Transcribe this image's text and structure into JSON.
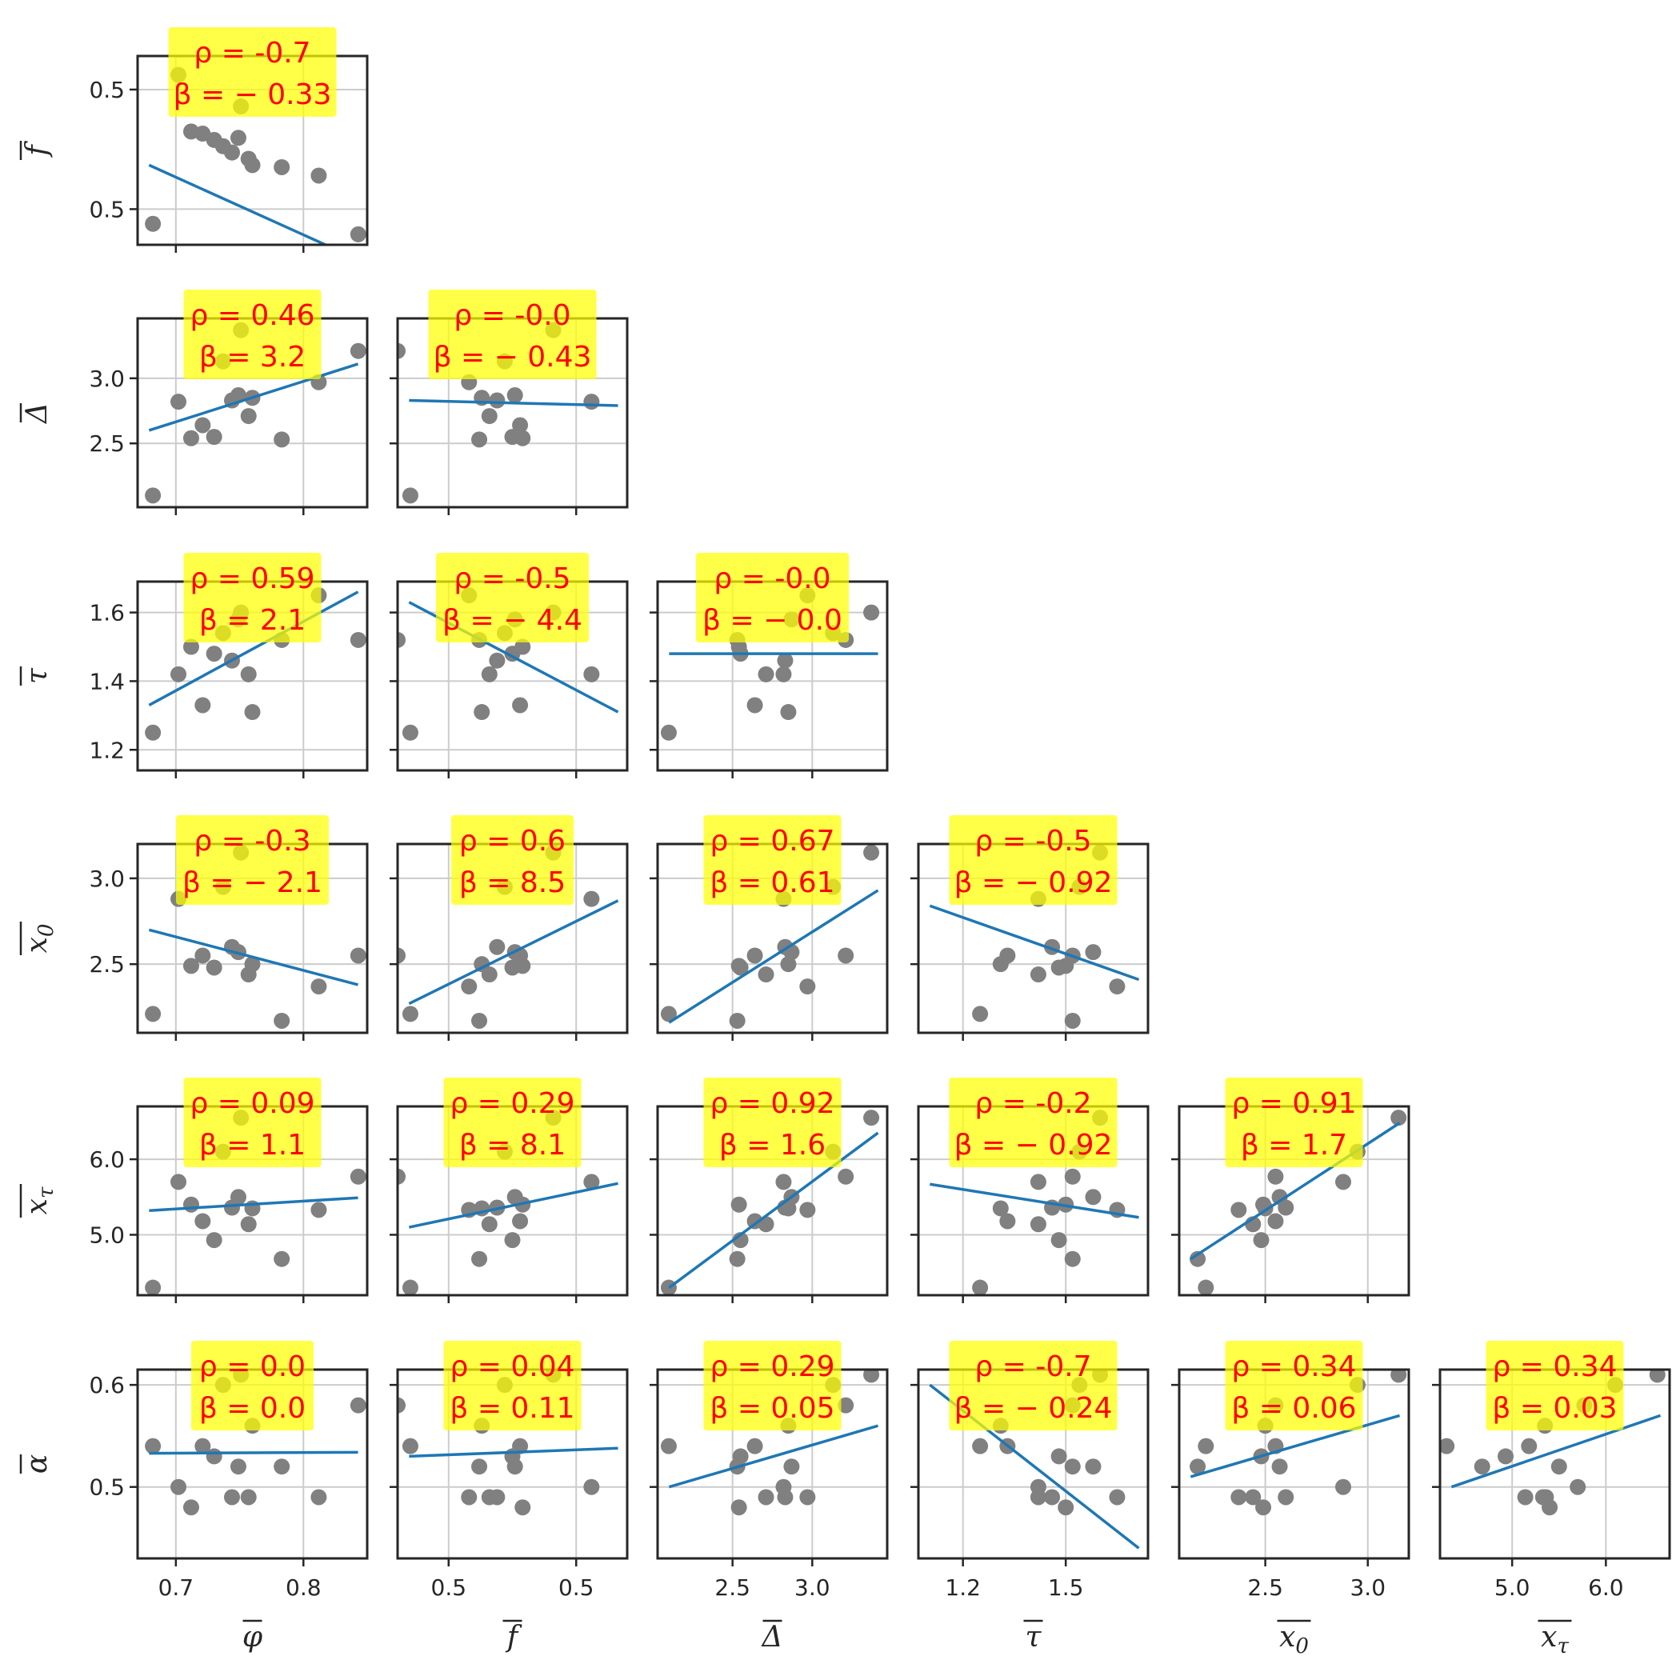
{
  "variables": [
    {
      "key": "phi",
      "label": "φ̄"
    },
    {
      "key": "f",
      "label": "f̄"
    },
    {
      "key": "Delta",
      "label": "Δ̄"
    },
    {
      "key": "tau",
      "label": "τ̄"
    },
    {
      "key": "x0",
      "label": "x₀ (overline)"
    },
    {
      "key": "xtau",
      "label": "x_τ (overline)"
    },
    {
      "key": "alpha",
      "label": "ᾱ"
    }
  ],
  "chart_data": {
    "type": "scatter",
    "layout": "lower-triangular pair plot (6x6)",
    "grid": true,
    "point_color": "#808080",
    "fit_line_color": "#1f77b4",
    "annotation_box_color": "#ffff00",
    "annotation_text_color": "#ff0000",
    "x_axes": [
      {
        "var": "phi",
        "label": "φ",
        "range": [
          0.67,
          0.85
        ],
        "ticks": [
          0.7,
          0.8
        ],
        "tick_labels": [
          "0.7",
          "0.8"
        ]
      },
      {
        "var": "f",
        "label": "f",
        "range": [
          0.46,
          0.55
        ],
        "ticks": [
          0.48,
          0.53
        ],
        "tick_labels": [
          "0.5",
          "0.5"
        ]
      },
      {
        "var": "Delta",
        "label": "Δ",
        "range": [
          2.03,
          3.47
        ],
        "ticks": [
          2.5,
          3.0
        ],
        "tick_labels": [
          "2.5",
          "3.0"
        ]
      },
      {
        "var": "tau",
        "label": "τ",
        "range": [
          1.07,
          1.74
        ],
        "ticks": [
          1.2,
          1.5
        ],
        "tick_labels": [
          "1.2",
          "1.5"
        ]
      },
      {
        "var": "x0",
        "label": "x₀",
        "range": [
          2.08,
          3.2
        ],
        "ticks": [
          2.5,
          3.0
        ],
        "tick_labels": [
          "2.5",
          "3.0"
        ]
      },
      {
        "var": "xtau",
        "label": "x_τ",
        "range": [
          4.23,
          6.68
        ],
        "ticks": [
          5.0,
          6.0
        ],
        "tick_labels": [
          "5.0",
          "6.0"
        ]
      }
    ],
    "y_axes": [
      {
        "var": "f",
        "label": "f",
        "range": [
          0.455,
          0.545
        ],
        "ticks": [
          0.472,
          0.529
        ],
        "tick_labels": [
          "0.5",
          "0.5"
        ]
      },
      {
        "var": "Delta",
        "label": "Δ",
        "range": [
          2.01,
          3.46
        ],
        "ticks": [
          2.5,
          3.0
        ],
        "tick_labels": [
          "2.5",
          "3.0"
        ]
      },
      {
        "var": "tau",
        "label": "τ",
        "range": [
          1.14,
          1.69
        ],
        "ticks": [
          1.2,
          1.4,
          1.6
        ],
        "tick_labels": [
          "1.2",
          "1.4",
          "1.6"
        ]
      },
      {
        "var": "x0",
        "label": "x₀",
        "range": [
          2.1,
          3.2
        ],
        "ticks": [
          2.5,
          3.0
        ],
        "tick_labels": [
          "2.5",
          "3.0"
        ]
      },
      {
        "var": "xtau",
        "label": "x_τ",
        "range": [
          4.2,
          6.7
        ],
        "ticks": [
          5.0,
          6.0
        ],
        "tick_labels": [
          "5.0",
          "6.0"
        ]
      },
      {
        "var": "alpha",
        "label": "α",
        "range": [
          0.43,
          0.615
        ],
        "ticks": [
          0.5,
          0.6
        ],
        "tick_labels": [
          "0.5",
          "0.6"
        ]
      }
    ],
    "observations": [
      {
        "phi": 0.682,
        "f": 0.465,
        "Delta": 2.1,
        "tau": 1.25,
        "x0": 2.21,
        "xtau": 4.3,
        "alpha": 0.54
      },
      {
        "phi": 0.702,
        "f": 0.536,
        "Delta": 2.82,
        "tau": 1.42,
        "x0": 2.88,
        "xtau": 5.7,
        "alpha": 0.5
      },
      {
        "phi": 0.712,
        "f": 0.509,
        "Delta": 2.54,
        "tau": 1.5,
        "x0": 2.49,
        "xtau": 5.4,
        "alpha": 0.48
      },
      {
        "phi": 0.721,
        "f": 0.508,
        "Delta": 2.64,
        "tau": 1.33,
        "x0": 2.55,
        "xtau": 5.18,
        "alpha": 0.54
      },
      {
        "phi": 0.73,
        "f": 0.505,
        "Delta": 2.55,
        "tau": 1.48,
        "x0": 2.48,
        "xtau": 4.93,
        "alpha": 0.53
      },
      {
        "phi": 0.737,
        "f": 0.502,
        "Delta": 3.13,
        "tau": 1.54,
        "x0": 2.95,
        "xtau": 6.1,
        "alpha": 0.6
      },
      {
        "phi": 0.744,
        "f": 0.499,
        "Delta": 2.83,
        "tau": 1.46,
        "x0": 2.6,
        "xtau": 5.36,
        "alpha": 0.49
      },
      {
        "phi": 0.749,
        "f": 0.506,
        "Delta": 2.87,
        "tau": 1.58,
        "x0": 2.57,
        "xtau": 5.5,
        "alpha": 0.52
      },
      {
        "phi": 0.751,
        "f": 0.521,
        "Delta": 3.37,
        "tau": 1.6,
        "x0": 3.15,
        "xtau": 6.55,
        "alpha": 0.61
      },
      {
        "phi": 0.757,
        "f": 0.496,
        "Delta": 2.71,
        "tau": 1.42,
        "x0": 2.44,
        "xtau": 5.14,
        "alpha": 0.49
      },
      {
        "phi": 0.76,
        "f": 0.493,
        "Delta": 2.85,
        "tau": 1.31,
        "x0": 2.5,
        "xtau": 5.35,
        "alpha": 0.56
      },
      {
        "phi": 0.783,
        "f": 0.492,
        "Delta": 2.53,
        "tau": 1.52,
        "x0": 2.17,
        "xtau": 4.68,
        "alpha": 0.52
      },
      {
        "phi": 0.812,
        "f": 0.488,
        "Delta": 2.97,
        "tau": 1.65,
        "x0": 2.37,
        "xtau": 5.33,
        "alpha": 0.49
      },
      {
        "phi": 0.843,
        "f": 0.46,
        "Delta": 3.21,
        "tau": 1.52,
        "x0": 2.55,
        "xtau": 5.77,
        "alpha": 0.58
      }
    ],
    "panels": [
      {
        "row": 0,
        "col": 0,
        "rho": "ρ = -0.7",
        "beta": "β = − 0.33",
        "fit": [
          0.493,
          0.448
        ]
      },
      {
        "row": 1,
        "col": 0,
        "rho": "ρ = 0.46",
        "beta": "β = 3.2",
        "fit": [
          2.6,
          3.11
        ]
      },
      {
        "row": 1,
        "col": 1,
        "rho": "ρ = -0.0",
        "beta": "β = − 0.43",
        "fit": [
          2.83,
          2.79
        ]
      },
      {
        "row": 2,
        "col": 0,
        "rho": "ρ = 0.59",
        "beta": "β = 2.1",
        "fit": [
          1.33,
          1.66
        ]
      },
      {
        "row": 2,
        "col": 1,
        "rho": "ρ = -0.5",
        "beta": "β = − 4.4",
        "fit": [
          1.63,
          1.31
        ]
      },
      {
        "row": 2,
        "col": 2,
        "rho": "ρ = -0.0",
        "beta": "β = − 0.0",
        "fit": [
          1.48,
          1.48
        ]
      },
      {
        "row": 3,
        "col": 0,
        "rho": "ρ = -0.3",
        "beta": "β = − 2.1",
        "fit": [
          2.7,
          2.38
        ]
      },
      {
        "row": 3,
        "col": 1,
        "rho": "ρ = 0.6",
        "beta": "β = 8.5",
        "fit": [
          2.27,
          2.87
        ]
      },
      {
        "row": 3,
        "col": 2,
        "rho": "ρ = 0.67",
        "beta": "β = 0.61",
        "fit": [
          2.16,
          2.93
        ]
      },
      {
        "row": 3,
        "col": 3,
        "rho": "ρ = -0.5",
        "beta": "β = − 0.92",
        "fit": [
          2.84,
          2.41
        ]
      },
      {
        "row": 4,
        "col": 0,
        "rho": "ρ = 0.09",
        "beta": "β = 1.1",
        "fit": [
          5.32,
          5.49
        ]
      },
      {
        "row": 4,
        "col": 1,
        "rho": "ρ = 0.29",
        "beta": "β = 8.1",
        "fit": [
          5.1,
          5.68
        ]
      },
      {
        "row": 4,
        "col": 2,
        "rho": "ρ = 0.92",
        "beta": "β = 1.6",
        "fit": [
          4.3,
          6.35
        ]
      },
      {
        "row": 4,
        "col": 3,
        "rho": "ρ = -0.2",
        "beta": "β = − 0.92",
        "fit": [
          5.67,
          5.23
        ]
      },
      {
        "row": 4,
        "col": 4,
        "rho": "ρ = 0.91",
        "beta": "β = 1.7",
        "fit": [
          4.68,
          6.48
        ]
      },
      {
        "row": 5,
        "col": 0,
        "rho": "ρ = 0.0",
        "beta": "β = 0.0",
        "fit": [
          0.533,
          0.534
        ]
      },
      {
        "row": 5,
        "col": 1,
        "rho": "ρ = 0.04",
        "beta": "β = 0.11",
        "fit": [
          0.53,
          0.538
        ]
      },
      {
        "row": 5,
        "col": 2,
        "rho": "ρ = 0.29",
        "beta": "β = 0.05",
        "fit": [
          0.5,
          0.56
        ]
      },
      {
        "row": 5,
        "col": 3,
        "rho": "ρ = -0.7",
        "beta": "β = − 0.24",
        "fit": [
          0.6,
          0.44
        ]
      },
      {
        "row": 5,
        "col": 4,
        "rho": "ρ = 0.34",
        "beta": "β = 0.06",
        "fit": [
          0.51,
          0.57
        ]
      },
      {
        "row": 5,
        "col": 5,
        "rho": "ρ = 0.34",
        "beta": "β = 0.03",
        "fit": [
          0.5,
          0.57
        ]
      }
    ]
  }
}
